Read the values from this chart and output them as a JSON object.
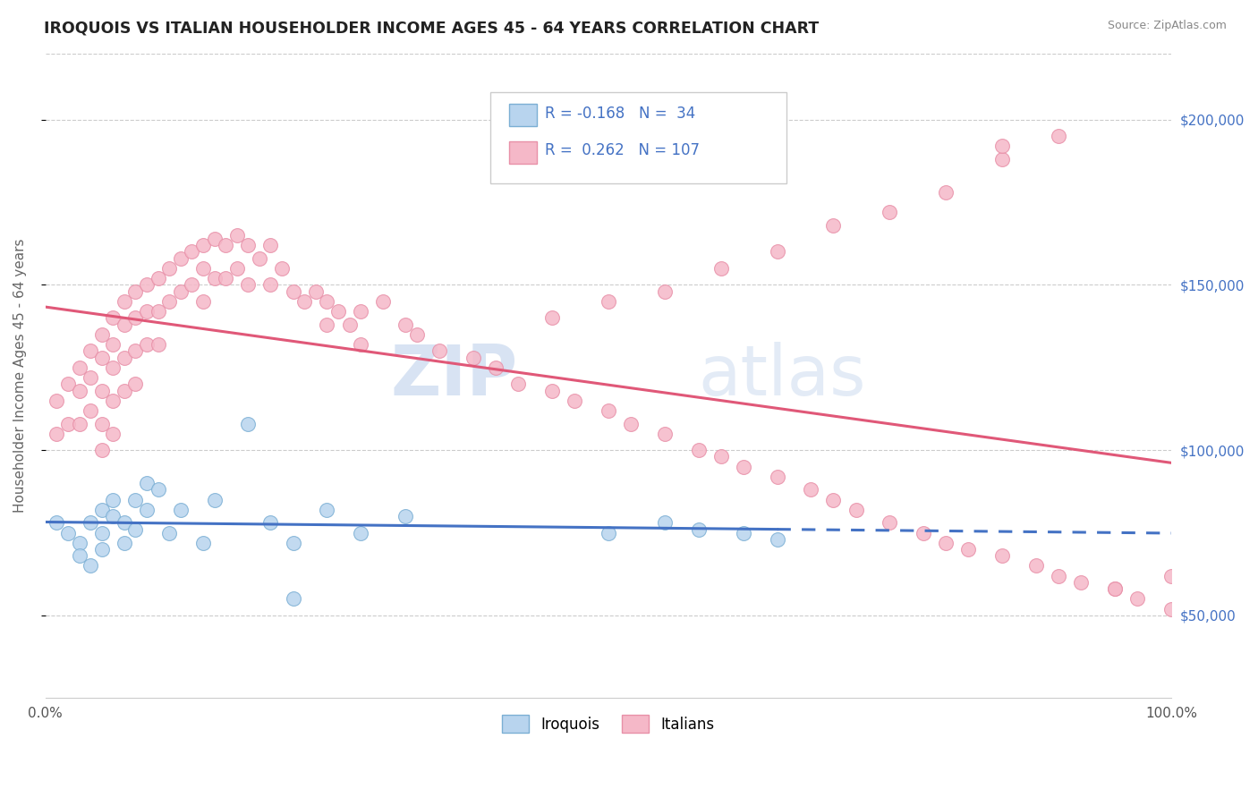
{
  "title": "IROQUOIS VS ITALIAN HOUSEHOLDER INCOME AGES 45 - 64 YEARS CORRELATION CHART",
  "source": "Source: ZipAtlas.com",
  "ylabel": "Householder Income Ages 45 - 64 years",
  "xlim": [
    0.0,
    100.0
  ],
  "ylim": [
    25000,
    220000
  ],
  "yticks": [
    50000,
    100000,
    150000,
    200000
  ],
  "ytick_labels": [
    "$50,000",
    "$100,000",
    "$150,000",
    "$200,000"
  ],
  "xticks": [
    0.0,
    100.0
  ],
  "xtick_labels": [
    "0.0%",
    "100.0%"
  ],
  "legend_r_iroquois": "-0.168",
  "legend_n_iroquois": "34",
  "legend_r_italians": "0.262",
  "legend_n_italians": "107",
  "color_iroquois_fill": "#b8d4ee",
  "color_iroquois_edge": "#7bafd4",
  "color_italians_fill": "#f5b8c8",
  "color_italians_edge": "#e890a8",
  "color_line_iroquois": "#4472c4",
  "color_line_italians": "#e05878",
  "watermark_zip": "ZIP",
  "watermark_atlas": "atlas",
  "iroquois_x": [
    1,
    2,
    3,
    3,
    4,
    4,
    5,
    5,
    5,
    6,
    6,
    7,
    7,
    8,
    8,
    9,
    9,
    10,
    11,
    12,
    14,
    15,
    18,
    20,
    22,
    25,
    28,
    32,
    50,
    55,
    58,
    62,
    65,
    22
  ],
  "iroquois_y": [
    78000,
    75000,
    72000,
    68000,
    65000,
    78000,
    82000,
    75000,
    70000,
    80000,
    85000,
    78000,
    72000,
    85000,
    76000,
    82000,
    90000,
    88000,
    75000,
    82000,
    72000,
    85000,
    108000,
    78000,
    72000,
    82000,
    75000,
    80000,
    75000,
    78000,
    76000,
    75000,
    73000,
    55000
  ],
  "italians_x": [
    1,
    1,
    2,
    2,
    3,
    3,
    3,
    4,
    4,
    4,
    5,
    5,
    5,
    5,
    5,
    6,
    6,
    6,
    6,
    6,
    7,
    7,
    7,
    7,
    8,
    8,
    8,
    8,
    9,
    9,
    9,
    10,
    10,
    10,
    11,
    11,
    12,
    12,
    13,
    13,
    14,
    14,
    14,
    15,
    15,
    16,
    16,
    17,
    17,
    18,
    18,
    19,
    20,
    20,
    21,
    22,
    23,
    24,
    25,
    25,
    26,
    27,
    28,
    28,
    30,
    32,
    33,
    35,
    38,
    40,
    42,
    45,
    47,
    50,
    52,
    55,
    58,
    60,
    62,
    65,
    68,
    70,
    72,
    75,
    78,
    80,
    82,
    85,
    88,
    90,
    92,
    95,
    97,
    100,
    45,
    50,
    55,
    60,
    65,
    70,
    75,
    80,
    85,
    90,
    95,
    100,
    85
  ],
  "italians_y": [
    115000,
    105000,
    120000,
    108000,
    125000,
    118000,
    108000,
    130000,
    122000,
    112000,
    135000,
    128000,
    118000,
    108000,
    100000,
    140000,
    132000,
    125000,
    115000,
    105000,
    145000,
    138000,
    128000,
    118000,
    148000,
    140000,
    130000,
    120000,
    150000,
    142000,
    132000,
    152000,
    142000,
    132000,
    155000,
    145000,
    158000,
    148000,
    160000,
    150000,
    162000,
    155000,
    145000,
    164000,
    152000,
    162000,
    152000,
    165000,
    155000,
    162000,
    150000,
    158000,
    162000,
    150000,
    155000,
    148000,
    145000,
    148000,
    145000,
    138000,
    142000,
    138000,
    142000,
    132000,
    145000,
    138000,
    135000,
    130000,
    128000,
    125000,
    120000,
    118000,
    115000,
    112000,
    108000,
    105000,
    100000,
    98000,
    95000,
    92000,
    88000,
    85000,
    82000,
    78000,
    75000,
    72000,
    70000,
    68000,
    65000,
    62000,
    60000,
    58000,
    55000,
    52000,
    140000,
    145000,
    148000,
    155000,
    160000,
    168000,
    172000,
    178000,
    188000,
    195000,
    58000,
    62000,
    192000
  ]
}
